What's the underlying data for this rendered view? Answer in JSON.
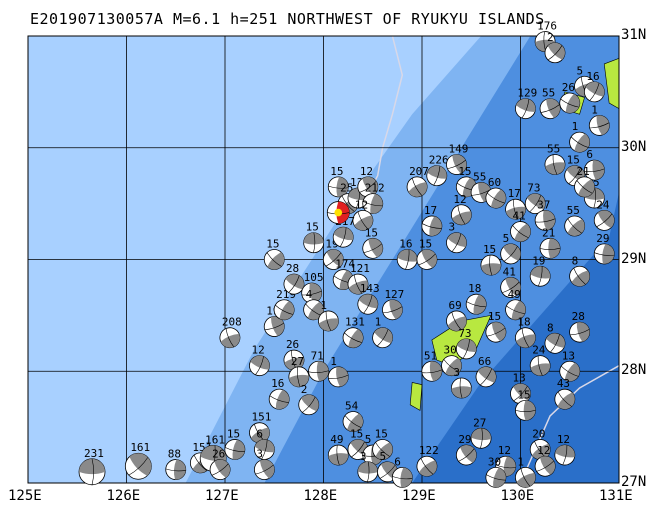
{
  "title": "E201907130057A M=6.1 h=251 NORTHWEST OF RYUKYU ISLANDS",
  "map": {
    "lon_range": [
      125,
      131
    ],
    "lat_range": [
      27,
      31
    ],
    "x_labels": [
      "125E",
      "126E",
      "127E",
      "128E",
      "129E",
      "130E",
      "131E"
    ],
    "y_labels": [
      "31N",
      "30N",
      "29N",
      "28N",
      "27N"
    ],
    "colors": {
      "deep_sea": "#2a6fc9",
      "mid_sea": "#4e8fe0",
      "shelf": "#7fb4f2",
      "shallow": "#a8d0ff",
      "land": "#b8e840",
      "grid": "#000000",
      "trench_line": "#d8d8e8",
      "beachball_compress": "#8a8a8a",
      "main_shock": "#e02020",
      "main_shock_center": "#ffe000"
    },
    "main_event": {
      "lon": 128.15,
      "lat": 29.42
    }
  },
  "events": [
    {
      "lon": 125.65,
      "lat": 27.1,
      "label": "231"
    },
    {
      "lon": 126.12,
      "lat": 27.15,
      "label": "161"
    },
    {
      "lon": 126.5,
      "lat": 27.12,
      "label": "88"
    },
    {
      "lon": 126.75,
      "lat": 27.18,
      "label": "151"
    },
    {
      "lon": 126.88,
      "lat": 27.22,
      "label": "161"
    },
    {
      "lon": 126.95,
      "lat": 27.12,
      "label": "26"
    },
    {
      "lon": 127.1,
      "lat": 27.3,
      "label": "15"
    },
    {
      "lon": 127.35,
      "lat": 27.45,
      "label": "151"
    },
    {
      "lon": 127.4,
      "lat": 27.3,
      "label": "6"
    },
    {
      "lon": 127.4,
      "lat": 27.12,
      "label": "3"
    },
    {
      "lon": 127.55,
      "lat": 27.75,
      "label": "16"
    },
    {
      "lon": 127.05,
      "lat": 28.3,
      "label": "208"
    },
    {
      "lon": 127.35,
      "lat": 28.05,
      "label": "12"
    },
    {
      "lon": 127.5,
      "lat": 28.4,
      "label": "19"
    },
    {
      "lon": 127.6,
      "lat": 28.55,
      "label": "219"
    },
    {
      "lon": 127.7,
      "lat": 28.1,
      "label": "26"
    },
    {
      "lon": 127.7,
      "lat": 28.78,
      "label": "28"
    },
    {
      "lon": 127.88,
      "lat": 28.7,
      "label": "105"
    },
    {
      "lon": 127.9,
      "lat": 28.55,
      "label": "4"
    },
    {
      "lon": 127.75,
      "lat": 27.95,
      "label": "27"
    },
    {
      "lon": 127.85,
      "lat": 27.7,
      "label": "2"
    },
    {
      "lon": 127.95,
      "lat": 28.0,
      "label": "71"
    },
    {
      "lon": 127.5,
      "lat": 29.0,
      "label": "15"
    },
    {
      "lon": 127.9,
      "lat": 29.15,
      "label": "15"
    },
    {
      "lon": 128.1,
      "lat": 29.0,
      "label": "196"
    },
    {
      "lon": 128.15,
      "lat": 29.65,
      "label": "15"
    },
    {
      "lon": 128.25,
      "lat": 29.5,
      "label": "25"
    },
    {
      "lon": 128.35,
      "lat": 29.55,
      "label": "13"
    },
    {
      "lon": 128.45,
      "lat": 29.65,
      "label": "12"
    },
    {
      "lon": 128.5,
      "lat": 29.5,
      "label": "212"
    },
    {
      "lon": 128.4,
      "lat": 29.35,
      "label": "12"
    },
    {
      "lon": 128.2,
      "lat": 29.2,
      "label": "217"
    },
    {
      "lon": 128.5,
      "lat": 29.1,
      "label": "15"
    },
    {
      "lon": 128.2,
      "lat": 28.82,
      "label": "174"
    },
    {
      "lon": 128.35,
      "lat": 28.78,
      "label": "121"
    },
    {
      "lon": 128.45,
      "lat": 28.6,
      "label": "143"
    },
    {
      "lon": 128.7,
      "lat": 28.55,
      "label": "127"
    },
    {
      "lon": 128.3,
      "lat": 28.3,
      "label": "131"
    },
    {
      "lon": 128.05,
      "lat": 28.45,
      "label": "1"
    },
    {
      "lon": 128.6,
      "lat": 28.3,
      "label": "1"
    },
    {
      "lon": 128.15,
      "lat": 27.95,
      "label": "1"
    },
    {
      "lon": 128.3,
      "lat": 27.55,
      "label": "54"
    },
    {
      "lon": 128.15,
      "lat": 27.25,
      "label": "49"
    },
    {
      "lon": 128.35,
      "lat": 27.3,
      "label": "15"
    },
    {
      "lon": 128.5,
      "lat": 27.25,
      "label": "5"
    },
    {
      "lon": 128.6,
      "lat": 27.3,
      "label": "15"
    },
    {
      "lon": 128.45,
      "lat": 27.1,
      "label": "3"
    },
    {
      "lon": 128.65,
      "lat": 27.1,
      "label": "5"
    },
    {
      "lon": 128.8,
      "lat": 27.05,
      "label": "6"
    },
    {
      "lon": 129.05,
      "lat": 27.15,
      "label": "122"
    },
    {
      "lon": 128.85,
      "lat": 29.0,
      "label": "16"
    },
    {
      "lon": 129.05,
      "lat": 29.0,
      "label": "15"
    },
    {
      "lon": 129.1,
      "lat": 29.3,
      "label": "17"
    },
    {
      "lon": 128.95,
      "lat": 29.65,
      "label": "207"
    },
    {
      "lon": 129.15,
      "lat": 29.75,
      "label": "226"
    },
    {
      "lon": 129.35,
      "lat": 29.85,
      "label": "149"
    },
    {
      "lon": 129.45,
      "lat": 29.65,
      "label": "15"
    },
    {
      "lon": 129.4,
      "lat": 29.4,
      "label": "12"
    },
    {
      "lon": 129.35,
      "lat": 29.15,
      "label": "3"
    },
    {
      "lon": 129.6,
      "lat": 29.6,
      "label": "55"
    },
    {
      "lon": 129.75,
      "lat": 29.55,
      "label": "60"
    },
    {
      "lon": 129.95,
      "lat": 29.45,
      "label": "17"
    },
    {
      "lon": 130.15,
      "lat": 29.5,
      "label": "73"
    },
    {
      "lon": 130.25,
      "lat": 29.35,
      "label": "37"
    },
    {
      "lon": 130.0,
      "lat": 29.25,
      "label": "41"
    },
    {
      "lon": 129.7,
      "lat": 28.95,
      "label": "15"
    },
    {
      "lon": 129.9,
      "lat": 29.05,
      "label": "5"
    },
    {
      "lon": 130.3,
      "lat": 29.1,
      "label": "21"
    },
    {
      "lon": 130.55,
      "lat": 29.3,
      "label": "55"
    },
    {
      "lon": 130.75,
      "lat": 29.55,
      "label": "15"
    },
    {
      "lon": 130.85,
      "lat": 29.35,
      "label": "24"
    },
    {
      "lon": 130.85,
      "lat": 29.05,
      "label": "29"
    },
    {
      "lon": 130.6,
      "lat": 28.85,
      "label": "8"
    },
    {
      "lon": 130.2,
      "lat": 28.85,
      "label": "19"
    },
    {
      "lon": 129.9,
      "lat": 28.75,
      "label": "41"
    },
    {
      "lon": 129.55,
      "lat": 28.6,
      "label": "18"
    },
    {
      "lon": 129.35,
      "lat": 28.45,
      "label": "69"
    },
    {
      "lon": 129.45,
      "lat": 28.2,
      "label": "73"
    },
    {
      "lon": 129.75,
      "lat": 28.35,
      "label": "15"
    },
    {
      "lon": 129.95,
      "lat": 28.55,
      "label": "49"
    },
    {
      "lon": 130.05,
      "lat": 28.3,
      "label": "18"
    },
    {
      "lon": 130.35,
      "lat": 28.25,
      "label": "8"
    },
    {
      "lon": 130.6,
      "lat": 28.35,
      "label": "28"
    },
    {
      "lon": 130.5,
      "lat": 28.0,
      "label": "13"
    },
    {
      "lon": 130.2,
      "lat": 28.05,
      "label": "24"
    },
    {
      "lon": 129.65,
      "lat": 27.95,
      "label": "66"
    },
    {
      "lon": 129.1,
      "lat": 28.0,
      "label": "51"
    },
    {
      "lon": 129.3,
      "lat": 28.05,
      "label": "30"
    },
    {
      "lon": 129.4,
      "lat": 27.85,
      "label": "3"
    },
    {
      "lon": 130.0,
      "lat": 27.8,
      "label": "13"
    },
    {
      "lon": 130.05,
      "lat": 27.65,
      "label": "15"
    },
    {
      "lon": 130.45,
      "lat": 27.75,
      "label": "43"
    },
    {
      "lon": 129.6,
      "lat": 27.4,
      "label": "27"
    },
    {
      "lon": 129.45,
      "lat": 27.25,
      "label": "29"
    },
    {
      "lon": 129.85,
      "lat": 27.15,
      "label": "12"
    },
    {
      "lon": 130.2,
      "lat": 27.3,
      "label": "20"
    },
    {
      "lon": 130.45,
      "lat": 27.25,
      "label": "12"
    },
    {
      "lon": 130.25,
      "lat": 27.15,
      "label": "12"
    },
    {
      "lon": 129.75,
      "lat": 27.05,
      "label": "30"
    },
    {
      "lon": 130.05,
      "lat": 27.05,
      "label": "1"
    },
    {
      "lon": 130.05,
      "lat": 30.35,
      "label": "129"
    },
    {
      "lon": 130.3,
      "lat": 30.35,
      "label": "55"
    },
    {
      "lon": 130.5,
      "lat": 30.4,
      "label": "26"
    },
    {
      "lon": 130.65,
      "lat": 30.55,
      "label": "5"
    },
    {
      "lon": 130.75,
      "lat": 30.5,
      "label": "16"
    },
    {
      "lon": 130.8,
      "lat": 30.2,
      "label": "1"
    },
    {
      "lon": 130.6,
      "lat": 30.05,
      "label": "1"
    },
    {
      "lon": 130.35,
      "lat": 29.85,
      "label": "55"
    },
    {
      "lon": 130.55,
      "lat": 29.75,
      "label": "15"
    },
    {
      "lon": 130.75,
      "lat": 29.8,
      "label": "6"
    },
    {
      "lon": 130.65,
      "lat": 29.65,
      "label": "21"
    },
    {
      "lon": 130.25,
      "lat": 30.95,
      "label": "176"
    },
    {
      "lon": 130.35,
      "lat": 30.85,
      "label": "2"
    }
  ]
}
